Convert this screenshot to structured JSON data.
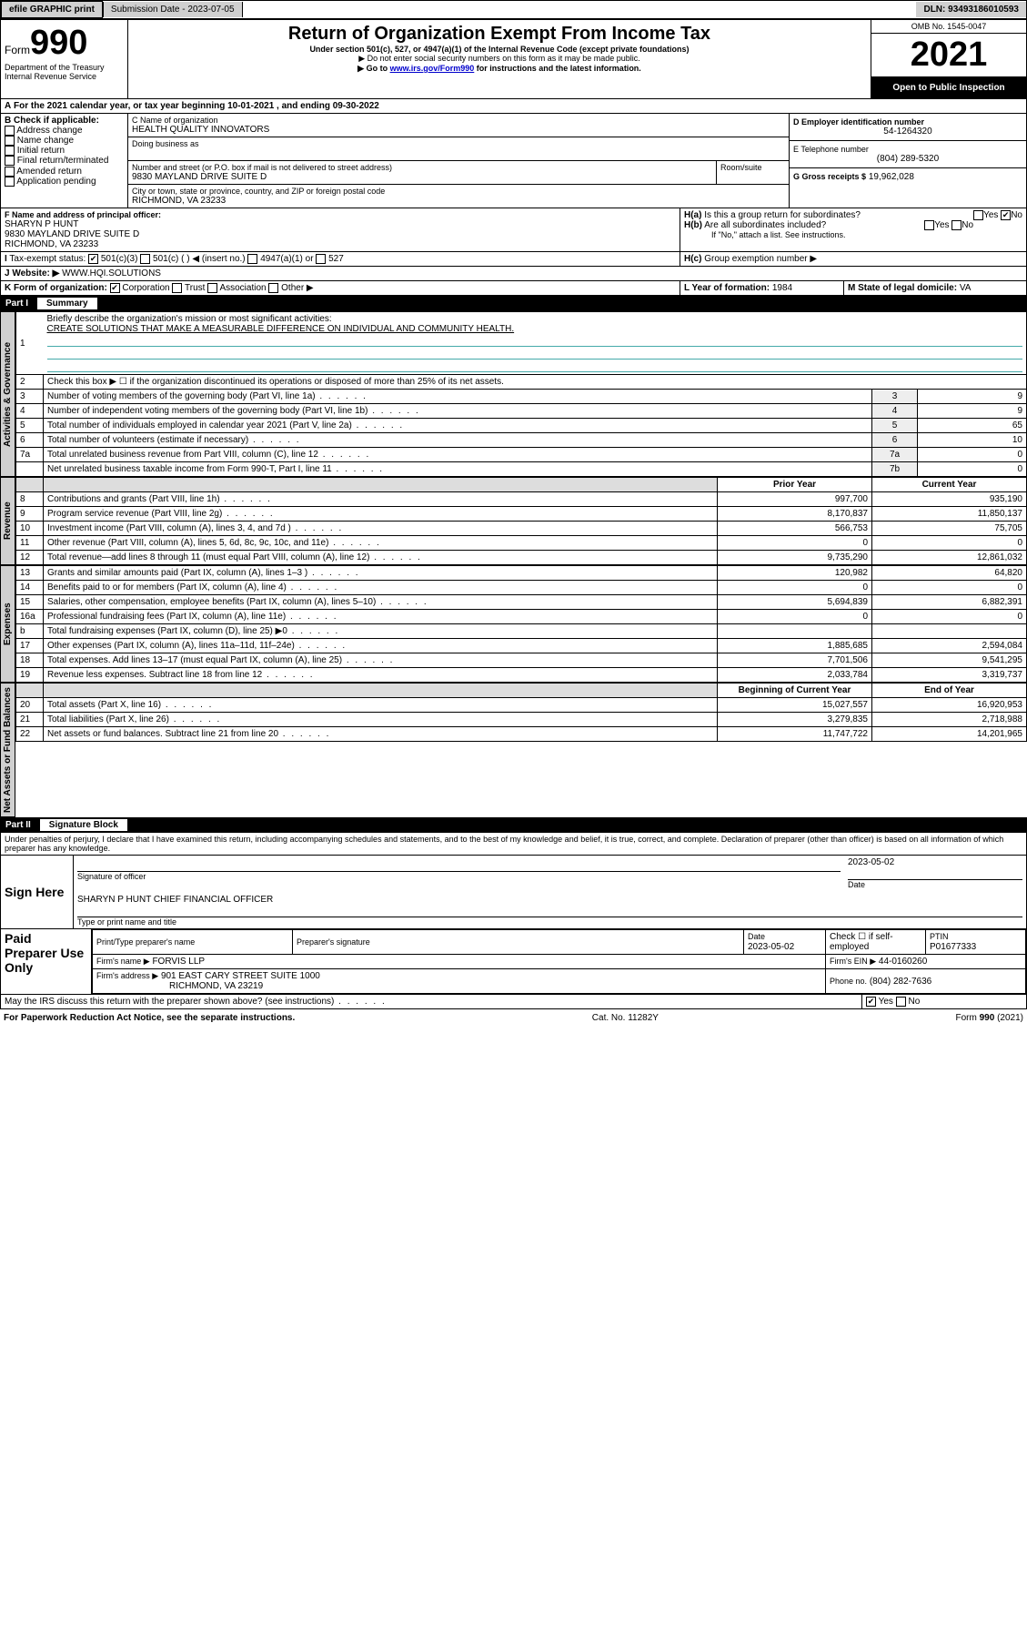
{
  "topbar": {
    "efile": "efile GRAPHIC print",
    "sublabel": "Submission Date - 2023-07-05",
    "dln": "DLN: 93493186010593"
  },
  "header": {
    "form_prefix": "Form",
    "form_no": "990",
    "dept": "Department of the Treasury",
    "irs": "Internal Revenue Service",
    "title": "Return of Organization Exempt From Income Tax",
    "subtitle": "Under section 501(c), 527, or 4947(a)(1) of the Internal Revenue Code (except private foundations)",
    "warn1": "▶ Do not enter social security numbers on this form as it may be made public.",
    "warn2_pre": "▶ Go to ",
    "warn2_link": "www.irs.gov/Form990",
    "warn2_post": " for instructions and the latest information.",
    "omb": "OMB No. 1545-0047",
    "year": "2021",
    "openpub": "Open to Public Inspection"
  },
  "A": {
    "text": "For the 2021 calendar year, or tax year beginning 10-01-2021   , and ending 09-30-2022"
  },
  "B": {
    "label": "B Check if applicable:",
    "opts": [
      "Address change",
      "Name change",
      "Initial return",
      "Final return/terminated",
      "Amended return",
      "Application pending"
    ]
  },
  "C": {
    "name_lbl": "C Name of organization",
    "name": "HEALTH QUALITY INNOVATORS",
    "dba_lbl": "Doing business as",
    "street_lbl": "Number and street (or P.O. box if mail is not delivered to street address)",
    "room_lbl": "Room/suite",
    "street": "9830 MAYLAND DRIVE SUITE D",
    "city_lbl": "City or town, state or province, country, and ZIP or foreign postal code",
    "city": "RICHMOND, VA  23233"
  },
  "D": {
    "lbl": "D Employer identification number",
    "val": "54-1264320"
  },
  "E": {
    "lbl": "E Telephone number",
    "val": "(804) 289-5320"
  },
  "G": {
    "lbl": "G Gross receipts $",
    "val": "19,962,028"
  },
  "F": {
    "lbl": "F Name and address of principal officer:",
    "name": "SHARYN P HUNT",
    "addr1": "9830 MAYLAND DRIVE SUITE D",
    "addr2": "RICHMOND, VA  23233"
  },
  "H": {
    "a": "Is this a group return for subordinates?",
    "b": "Are all subordinates included?",
    "bnote": "If \"No,\" attach a list. See instructions.",
    "c": "Group exemption number ▶",
    "yes": "Yes",
    "no": "No"
  },
  "I": {
    "lbl": "Tax-exempt status:",
    "o1": "501(c)(3)",
    "o2": "501(c) (   ) ◀ (insert no.)",
    "o3": "4947(a)(1) or",
    "o4": "527"
  },
  "J": {
    "lbl": "Website: ▶",
    "val": "WWW.HQI.SOLUTIONS"
  },
  "K": {
    "lbl": "K Form of organization:",
    "o1": "Corporation",
    "o2": "Trust",
    "o3": "Association",
    "o4": "Other ▶"
  },
  "L": {
    "lbl": "L Year of formation:",
    "val": "1984"
  },
  "M": {
    "lbl": "M State of legal domicile:",
    "val": "VA"
  },
  "part1": {
    "hdr": "Part I",
    "title": "Summary"
  },
  "summary": {
    "q1": "Briefly describe the organization's mission or most significant activities:",
    "mission": "CREATE SOLUTIONS THAT MAKE A MEASURABLE DIFFERENCE ON INDIVIDUAL AND COMMUNITY HEALTH.",
    "q2": "Check this box ▶ ☐  if the organization discontinued its operations or disposed of more than 25% of its net assets.",
    "q3": "Number of voting members of the governing body (Part VI, line 1a)",
    "q4": "Number of independent voting members of the governing body (Part VI, line 1b)",
    "q5": "Total number of individuals employed in calendar year 2021 (Part V, line 2a)",
    "q6": "Total number of volunteers (estimate if necessary)",
    "q7a": "Total unrelated business revenue from Part VIII, column (C), line 12",
    "q7b": "Net unrelated business taxable income from Form 990-T, Part I, line 11",
    "v3": "9",
    "v4": "9",
    "v5": "65",
    "v6": "10",
    "v7a": "0",
    "v7b": "0",
    "prior_hdr": "Prior Year",
    "curr_hdr": "Current Year",
    "rows": [
      {
        "n": "8",
        "t": "Contributions and grants (Part VIII, line 1h)",
        "p": "997,700",
        "c": "935,190"
      },
      {
        "n": "9",
        "t": "Program service revenue (Part VIII, line 2g)",
        "p": "8,170,837",
        "c": "11,850,137"
      },
      {
        "n": "10",
        "t": "Investment income (Part VIII, column (A), lines 3, 4, and 7d )",
        "p": "566,753",
        "c": "75,705"
      },
      {
        "n": "11",
        "t": "Other revenue (Part VIII, column (A), lines 5, 6d, 8c, 9c, 10c, and 11e)",
        "p": "0",
        "c": "0"
      },
      {
        "n": "12",
        "t": "Total revenue—add lines 8 through 11 (must equal Part VIII, column (A), line 12)",
        "p": "9,735,290",
        "c": "12,861,032"
      },
      {
        "n": "13",
        "t": "Grants and similar amounts paid (Part IX, column (A), lines 1–3 )",
        "p": "120,982",
        "c": "64,820"
      },
      {
        "n": "14",
        "t": "Benefits paid to or for members (Part IX, column (A), line 4)",
        "p": "0",
        "c": "0"
      },
      {
        "n": "15",
        "t": "Salaries, other compensation, employee benefits (Part IX, column (A), lines 5–10)",
        "p": "5,694,839",
        "c": "6,882,391"
      },
      {
        "n": "16a",
        "t": "Professional fundraising fees (Part IX, column (A), line 11e)",
        "p": "0",
        "c": "0"
      },
      {
        "n": "b",
        "t": "Total fundraising expenses (Part IX, column (D), line 25) ▶0",
        "p": "",
        "c": ""
      },
      {
        "n": "17",
        "t": "Other expenses (Part IX, column (A), lines 11a–11d, 11f–24e)",
        "p": "1,885,685",
        "c": "2,594,084"
      },
      {
        "n": "18",
        "t": "Total expenses. Add lines 13–17 (must equal Part IX, column (A), line 25)",
        "p": "7,701,506",
        "c": "9,541,295"
      },
      {
        "n": "19",
        "t": "Revenue less expenses. Subtract line 18 from line 12",
        "p": "2,033,784",
        "c": "3,319,737"
      }
    ],
    "begin_hdr": "Beginning of Current Year",
    "end_hdr": "End of Year",
    "net_rows": [
      {
        "n": "20",
        "t": "Total assets (Part X, line 16)",
        "p": "15,027,557",
        "c": "16,920,953"
      },
      {
        "n": "21",
        "t": "Total liabilities (Part X, line 26)",
        "p": "3,279,835",
        "c": "2,718,988"
      },
      {
        "n": "22",
        "t": "Net assets or fund balances. Subtract line 21 from line 20",
        "p": "11,747,722",
        "c": "14,201,965"
      }
    ]
  },
  "part2": {
    "hdr": "Part II",
    "title": "Signature Block"
  },
  "sig": {
    "decl": "Under penalties of perjury, I declare that I have examined this return, including accompanying schedules and statements, and to the best of my knowledge and belief, it is true, correct, and complete. Declaration of preparer (other than officer) is based on all information of which preparer has any knowledge.",
    "sign_here": "Sign Here",
    "sig_officer": "Signature of officer",
    "date1": "2023-05-02",
    "date_lbl": "Date",
    "officer": "SHARYN P HUNT  CHIEF FINANCIAL OFFICER",
    "officer_lbl": "Type or print name and title",
    "paid": "Paid Preparer Use Only",
    "prep_name_lbl": "Print/Type preparer's name",
    "prep_sig_lbl": "Preparer's signature",
    "prep_date": "2023-05-02",
    "check_lbl": "Check ☐ if self-employed",
    "ptin_lbl": "PTIN",
    "ptin": "P01677333",
    "firm_name_lbl": "Firm's name   ▶",
    "firm_name": "FORVIS LLP",
    "firm_ein_lbl": "Firm's EIN ▶",
    "firm_ein": "44-0160260",
    "firm_addr_lbl": "Firm's address ▶",
    "firm_addr1": "901 EAST CARY STREET SUITE 1000",
    "firm_addr2": "RICHMOND, VA  23219",
    "phone_lbl": "Phone no.",
    "phone": "(804) 282-7636",
    "discuss": "May the IRS discuss this return with the preparer shown above? (see instructions)"
  },
  "footer": {
    "left": "For Paperwork Reduction Act Notice, see the separate instructions.",
    "mid": "Cat. No. 11282Y",
    "right": "Form 990 (2021)"
  },
  "tabs": {
    "act": "Activities & Governance",
    "rev": "Revenue",
    "exp": "Expenses",
    "net": "Net Assets or Fund Balances"
  }
}
